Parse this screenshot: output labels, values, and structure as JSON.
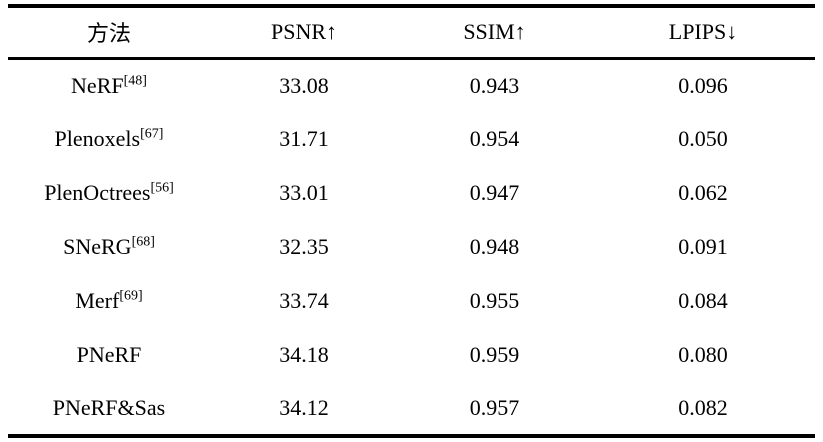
{
  "colors": {
    "text": "#000000",
    "background": "#ffffff",
    "rule": "#000000"
  },
  "table": {
    "columns": {
      "method": "方法",
      "psnr": "PSNR↑",
      "ssim": "SSIM↑",
      "lpips": "LPIPS↓"
    },
    "rows": [
      {
        "method": "NeRF",
        "ref": "[48]",
        "psnr": "33.08",
        "ssim": "0.943",
        "lpips": "0.096"
      },
      {
        "method": "Plenoxels",
        "ref": "[67]",
        "psnr": "31.71",
        "ssim": "0.954",
        "lpips": "0.050"
      },
      {
        "method": "PlenOctrees",
        "ref": "[56]",
        "psnr": "33.01",
        "ssim": "0.947",
        "lpips": "0.062"
      },
      {
        "method": "SNeRG",
        "ref": "[68]",
        "psnr": "32.35",
        "ssim": "0.948",
        "lpips": "0.091"
      },
      {
        "method": "Merf",
        "ref": "[69]",
        "psnr": "33.74",
        "ssim": "0.955",
        "lpips": "0.084"
      },
      {
        "method": "PNeRF",
        "ref": "",
        "psnr": "34.18",
        "ssim": "0.959",
        "lpips": "0.080"
      },
      {
        "method": "PNeRF&Sas",
        "ref": "",
        "psnr": "34.12",
        "ssim": "0.957",
        "lpips": "0.082"
      }
    ]
  }
}
